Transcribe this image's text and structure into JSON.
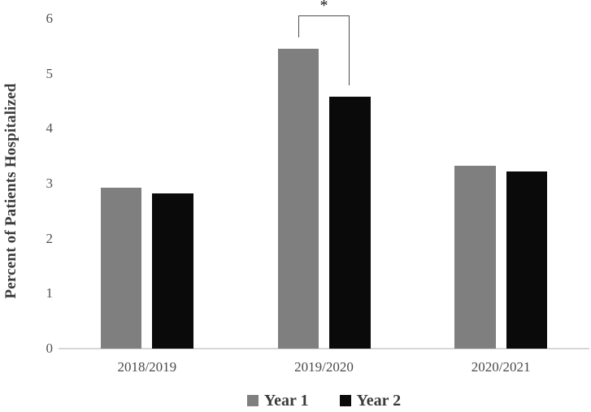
{
  "figure": {
    "y_axis_title": "Percent of Patients Hospitalized",
    "colors": {
      "series1": "#7f7f7f",
      "series2": "#0a0a0a",
      "axis_line": "#d6d6d6",
      "tick_text": "#525252",
      "category_text": "#4a4a4a",
      "title_text": "#3b3b3b",
      "legend_text": "#3b3b3b",
      "bracket": "#4d4d4d",
      "background": "#ffffff"
    }
  },
  "chart_data": {
    "type": "bar",
    "title": "",
    "xlabel": "",
    "ylabel": "Percent of Patients Hospitalized",
    "categories": [
      "2018/2019",
      "2019/2020",
      "2020/2021"
    ],
    "series": [
      {
        "name": "Year 1",
        "color": "#7f7f7f",
        "values": [
          2.92,
          5.45,
          3.32
        ]
      },
      {
        "name": "Year 2",
        "color": "#0a0a0a",
        "values": [
          2.82,
          4.58,
          3.22
        ]
      }
    ],
    "ylim": [
      0,
      6
    ],
    "yticks": [
      0,
      1,
      2,
      3,
      4,
      5,
      6
    ],
    "grid": false,
    "legend_position": "bottom",
    "legend": [
      "Year 1",
      "Year 2"
    ],
    "annotations": [
      {
        "type": "significance_bracket",
        "label": "*",
        "category": "2019/2020",
        "category_index": 1,
        "between_series": [
          "Year 1",
          "Year 2"
        ]
      }
    ]
  }
}
